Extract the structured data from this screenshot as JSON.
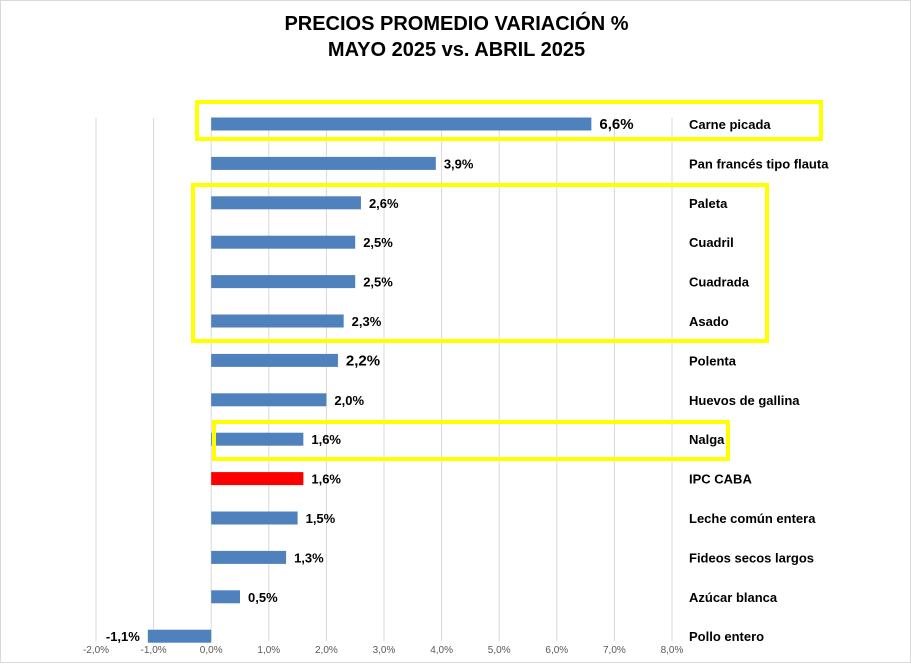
{
  "title_line1": "PRECIOS PROMEDIO VARIACIÓN %",
  "title_line2": "MAYO 2025 vs. ABRIL 2025",
  "colors": {
    "bar": "#4f81bd",
    "highlight_bar": "#ff0000",
    "box": "#ffff00",
    "grid": "#d9d9d9"
  },
  "chart_data": {
    "type": "bar",
    "orientation": "horizontal",
    "title": "PRECIOS PROMEDIO VARIACIÓN % MAYO 2025 vs. ABRIL 2025",
    "xlim": [
      -2.0,
      8.0
    ],
    "xticks": [
      -2.0,
      -1.0,
      0.0,
      1.0,
      2.0,
      3.0,
      4.0,
      5.0,
      6.0,
      7.0,
      8.0
    ],
    "xtick_labels": [
      "-2,0%",
      "-1,0%",
      "0,0%",
      "1,0%",
      "2,0%",
      "3,0%",
      "4,0%",
      "5,0%",
      "6,0%",
      "7,0%",
      "8,0%"
    ],
    "grid": "vertical",
    "categories": [
      "Carne picada",
      "Pan francés tipo flauta",
      "Paleta",
      "Cuadril",
      "Cuadrada",
      "Asado",
      "Polenta",
      "Huevos de gallina",
      "Nalga",
      "IPC CABA",
      "Leche común entera",
      "Fideos secos largos",
      "Azúcar blanca",
      "Pollo entero"
    ],
    "values": [
      6.6,
      3.9,
      2.6,
      2.5,
      2.5,
      2.3,
      2.2,
      2.0,
      1.6,
      1.6,
      1.5,
      1.3,
      0.5,
      -1.1
    ],
    "value_labels": [
      "6,6%",
      "3,9%",
      "2,6%",
      "2,5%",
      "2,5%",
      "2,3%",
      "2,2%",
      "2,0%",
      "1,6%",
      "1,6%",
      "1,5%",
      "1,3%",
      "0,5%",
      "-1,1%"
    ],
    "highlighted_category": "IPC CABA",
    "highlight_groups": [
      [
        "Carne picada"
      ],
      [
        "Paleta",
        "Cuadril",
        "Cuadrada",
        "Asado"
      ],
      [
        "Nalga"
      ]
    ]
  }
}
